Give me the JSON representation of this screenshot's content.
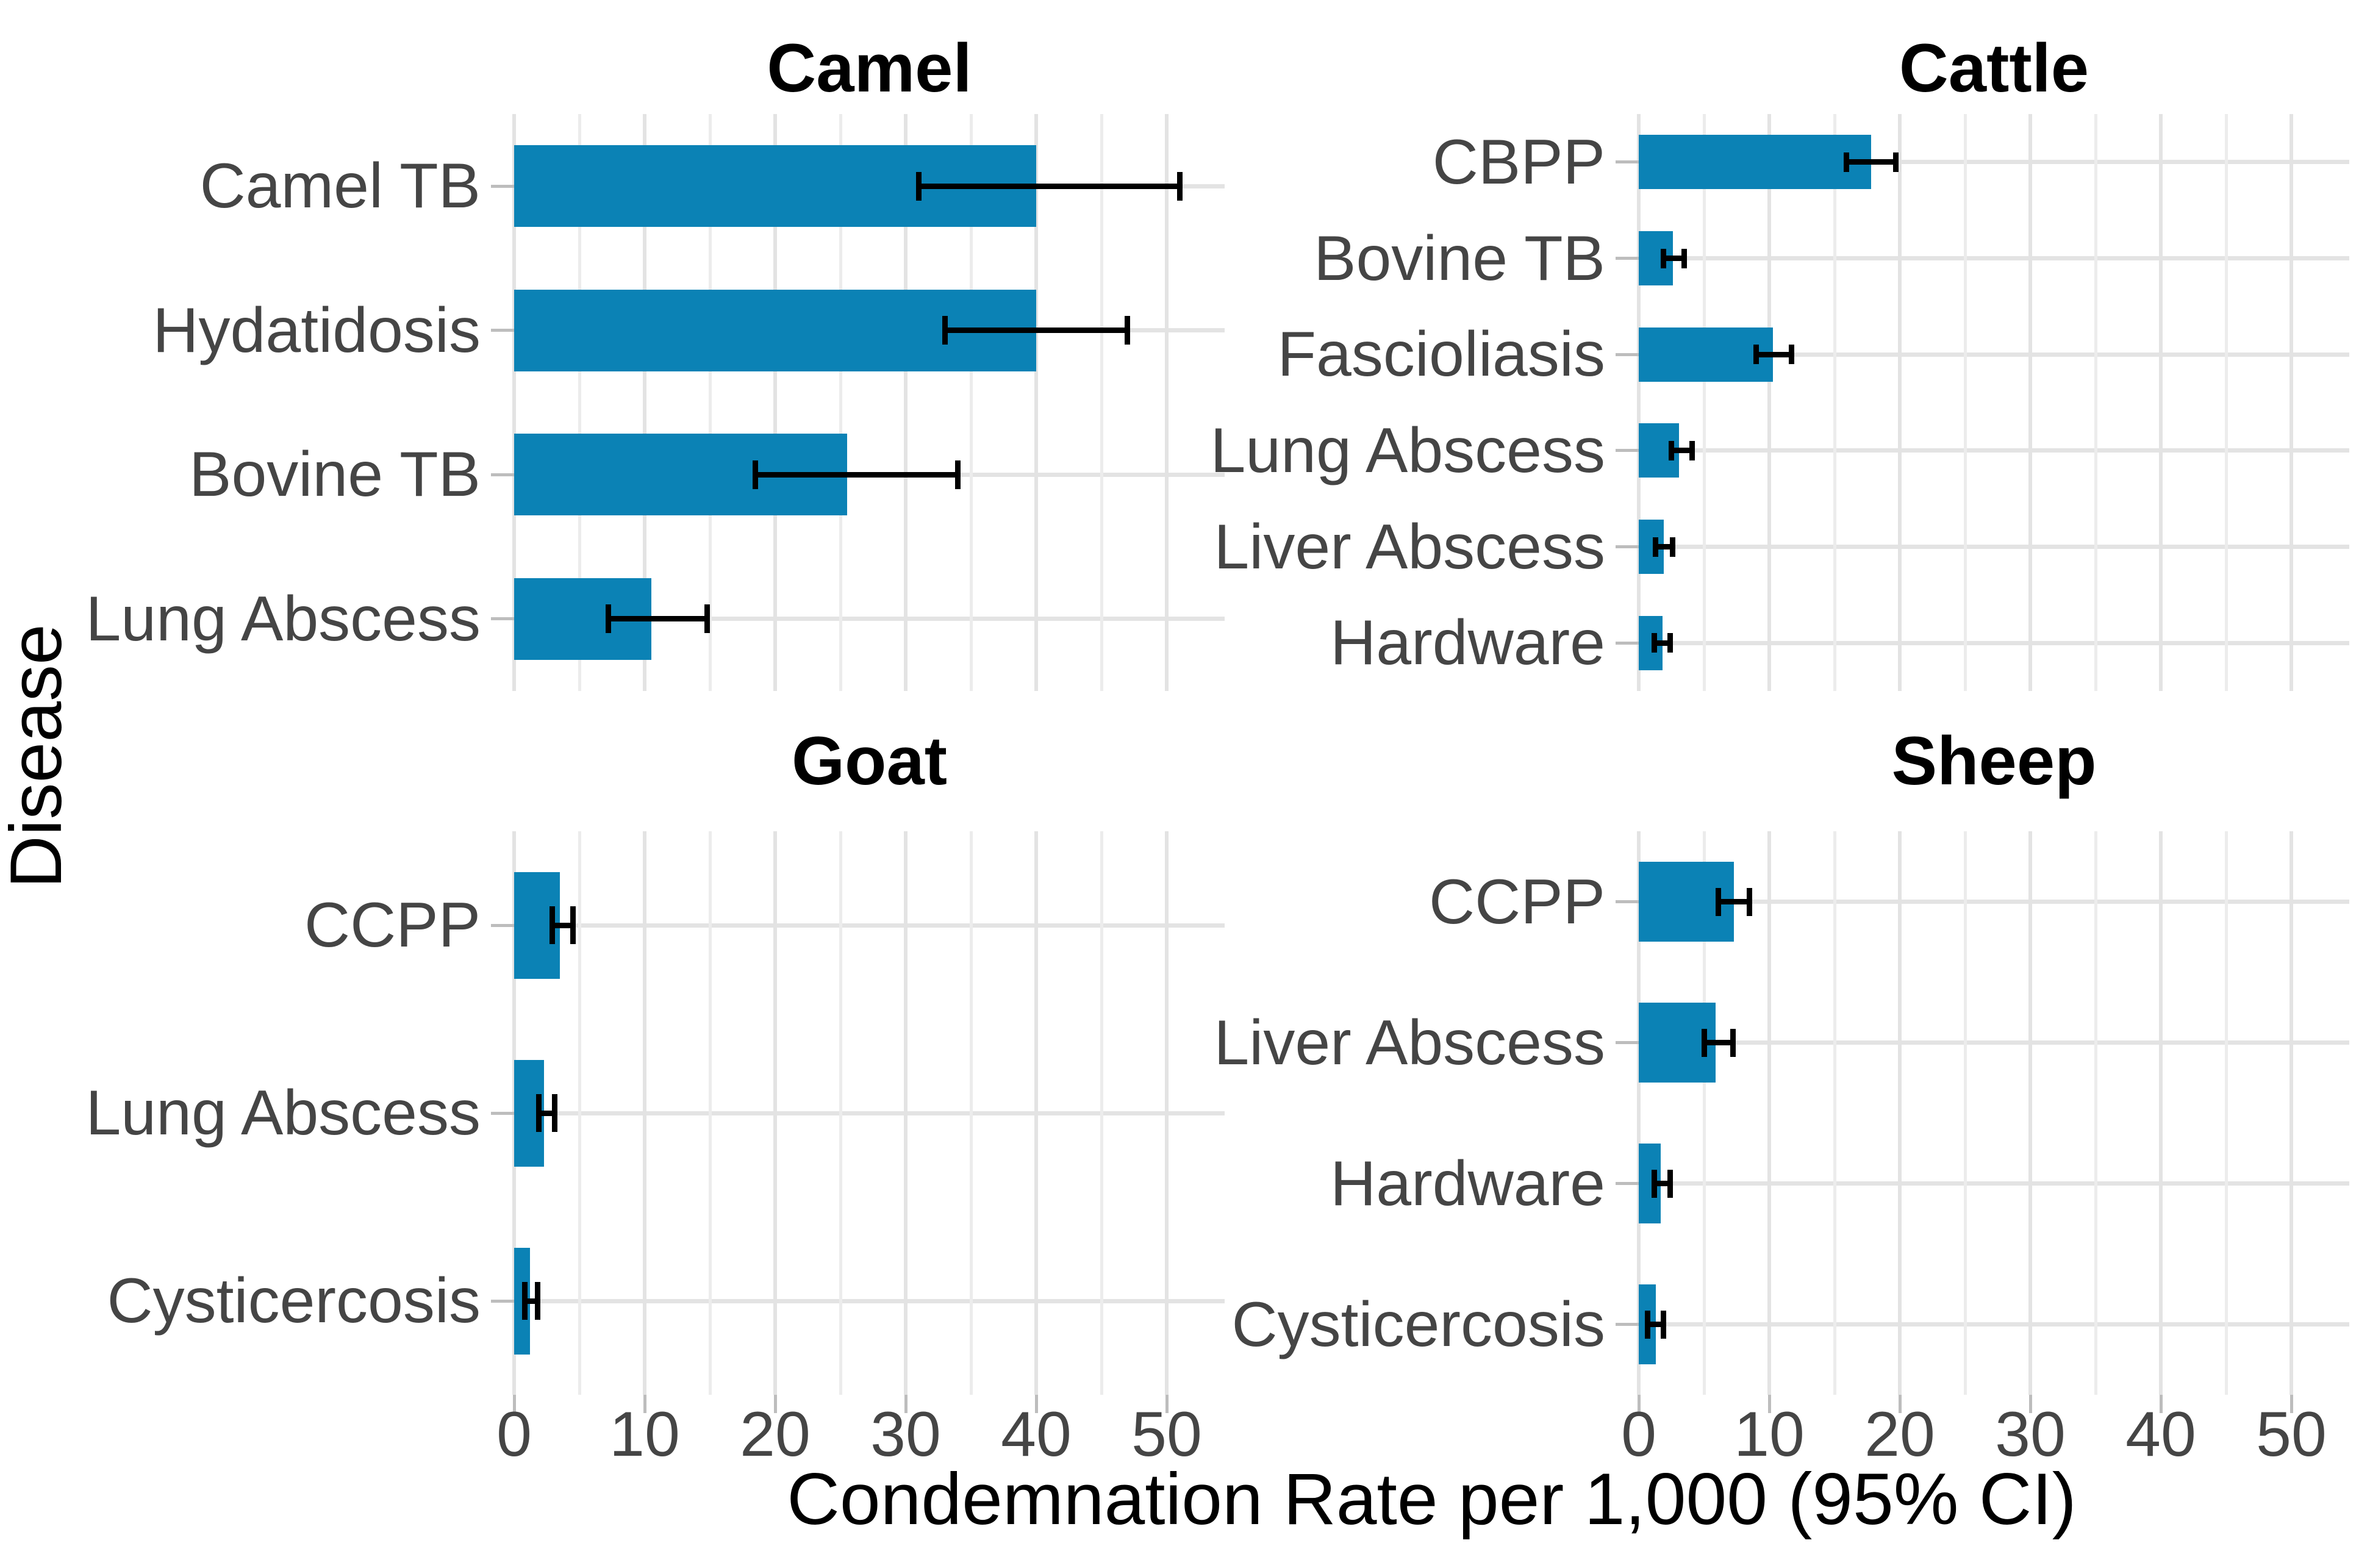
{
  "figure": {
    "background_color": "#ffffff",
    "bar_color": "#0b82b5",
    "errorbar_color": "#000000",
    "grid_major_color": "#e3e3e3",
    "grid_minor_color": "#ececec",
    "label_color": "#454545",
    "title_color": "#000000"
  },
  "chart_data": {
    "type": "bar",
    "orientation": "horizontal",
    "title": "",
    "xlabel": "Condemnation Rate per 1,000 (95% CI)",
    "ylabel": "Disease",
    "xlim": [
      0,
      53.8
    ],
    "x_breaks": [
      0,
      10,
      20,
      30,
      40,
      50
    ],
    "x_minor_breaks": [
      5,
      15,
      25,
      35,
      45
    ],
    "x_tick_labels": [
      "0",
      "10",
      "20",
      "30",
      "40",
      "50"
    ],
    "grid": "on",
    "legend_position": "none",
    "error_bars": "95% CI",
    "facets": [
      {
        "title": "Camel",
        "rows": [
          {
            "label": "Camel TB",
            "value": 40.0,
            "ci_low": 31.0,
            "ci_high": 51.0
          },
          {
            "label": "Hydatidosis",
            "value": 40.0,
            "ci_low": 33.0,
            "ci_high": 47.0
          },
          {
            "label": "Bovine TB",
            "value": 25.5,
            "ci_low": 18.5,
            "ci_high": 34.0
          },
          {
            "label": "Lung Abscess",
            "value": 10.5,
            "ci_low": 7.2,
            "ci_high": 14.8
          }
        ]
      },
      {
        "title": "Cattle",
        "rows": [
          {
            "label": "CBPP",
            "value": 17.8,
            "ci_low": 15.9,
            "ci_high": 19.7
          },
          {
            "label": "Bovine TB",
            "value": 2.6,
            "ci_low": 1.9,
            "ci_high": 3.5
          },
          {
            "label": "Fascioliasis",
            "value": 10.3,
            "ci_low": 9.0,
            "ci_high": 11.7
          },
          {
            "label": "Lung Abscess",
            "value": 3.1,
            "ci_low": 2.5,
            "ci_high": 4.1
          },
          {
            "label": "Liver Abscess",
            "value": 1.9,
            "ci_low": 1.3,
            "ci_high": 2.6
          },
          {
            "label": "Hardware",
            "value": 1.8,
            "ci_low": 1.2,
            "ci_high": 2.4
          }
        ]
      },
      {
        "title": "Goat",
        "rows": [
          {
            "label": "CCPP",
            "value": 3.5,
            "ci_low": 2.9,
            "ci_high": 4.5
          },
          {
            "label": "Lung Abscess",
            "value": 2.3,
            "ci_low": 1.9,
            "ci_high": 3.1
          },
          {
            "label": "Cysticercosis",
            "value": 1.2,
            "ci_low": 0.8,
            "ci_high": 1.8
          }
        ]
      },
      {
        "title": "Sheep",
        "rows": [
          {
            "label": "CCPP",
            "value": 7.3,
            "ci_low": 6.1,
            "ci_high": 8.5
          },
          {
            "label": "Liver Abscess",
            "value": 5.9,
            "ci_low": 5.0,
            "ci_high": 7.2
          },
          {
            "label": "Hardware",
            "value": 1.7,
            "ci_low": 1.2,
            "ci_high": 2.4
          },
          {
            "label": "Cysticercosis",
            "value": 1.3,
            "ci_low": 0.7,
            "ci_high": 1.9
          }
        ]
      }
    ]
  }
}
